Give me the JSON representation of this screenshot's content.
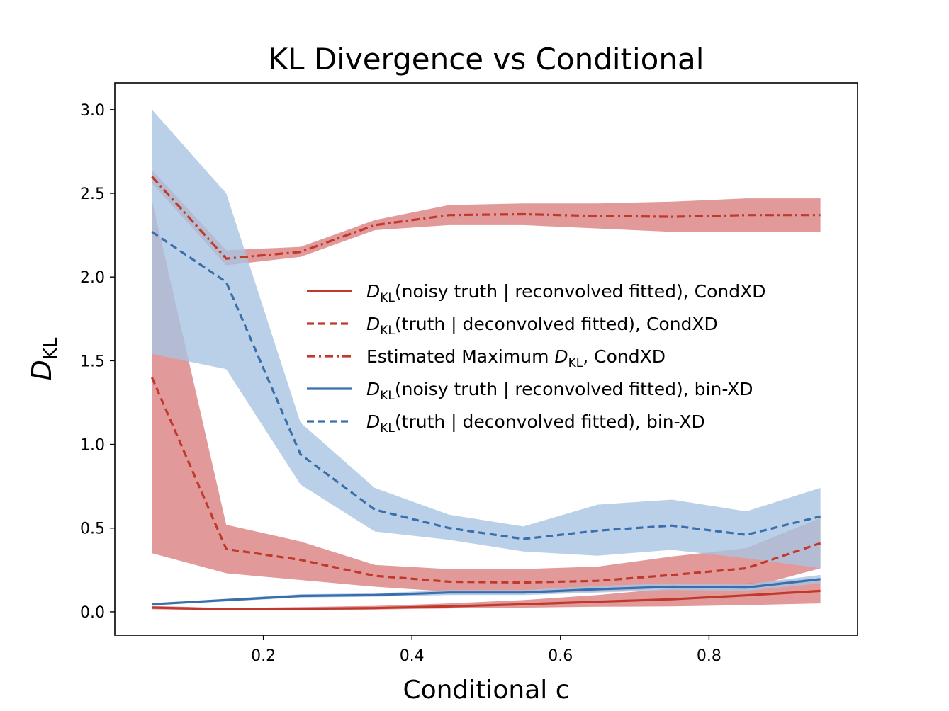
{
  "chart_data": {
    "type": "line",
    "title": "KL Divergence vs Conditional",
    "xlabel": "Conditional c",
    "ylabel_main": "D",
    "ylabel_sub": "KL",
    "xlim": [
      0.0,
      1.0
    ],
    "ylim": [
      -0.14,
      3.16
    ],
    "xticks": [
      0.2,
      0.4,
      0.6,
      0.8
    ],
    "xtick_labels": [
      "0.2",
      "0.4",
      "0.6",
      "0.8"
    ],
    "yticks": [
      0.0,
      0.5,
      1.0,
      1.5,
      2.0,
      2.5,
      3.0
    ],
    "ytick_labels": [
      "0.0",
      "0.5",
      "1.0",
      "1.5",
      "2.0",
      "2.5",
      "3.0"
    ],
    "grid": false,
    "legend_position": "center-right",
    "x": [
      0.05,
      0.15,
      0.25,
      0.35,
      0.45,
      0.55,
      0.65,
      0.75,
      0.85,
      0.95
    ],
    "series": [
      {
        "legend_pre": "D",
        "legend_sub": "KL",
        "legend_post": "(noisy truth | reconvolved fitted), CondXD",
        "color": "#c0392b",
        "band_color": "#d98080",
        "dash": "solid",
        "values": [
          0.025,
          0.015,
          0.018,
          0.022,
          0.032,
          0.045,
          0.06,
          0.075,
          0.098,
          0.125
        ],
        "lower": [
          0.015,
          0.008,
          0.01,
          0.013,
          0.02,
          0.025,
          0.03,
          0.032,
          0.04,
          0.05
        ],
        "upper": [
          0.035,
          0.022,
          0.028,
          0.035,
          0.05,
          0.07,
          0.1,
          0.14,
          0.17,
          0.2
        ]
      },
      {
        "legend_pre": "D",
        "legend_sub": "KL",
        "legend_post": "(truth | deconvolved fitted), CondXD",
        "color": "#c0392b",
        "band_color": "#d98080",
        "dash": "dashed",
        "values": [
          1.4,
          0.375,
          0.31,
          0.215,
          0.18,
          0.175,
          0.185,
          0.22,
          0.26,
          0.41
        ],
        "lower": [
          0.35,
          0.23,
          0.19,
          0.15,
          0.12,
          0.11,
          0.12,
          0.14,
          0.14,
          0.26
        ],
        "upper": [
          2.46,
          0.52,
          0.42,
          0.28,
          0.255,
          0.255,
          0.27,
          0.33,
          0.38,
          0.56
        ]
      },
      {
        "legend_pre": "Estimated Maximum D",
        "legend_sub": "KL",
        "legend_post": ", CondXD",
        "color": "#c0392b",
        "band_color": "#d98080",
        "dash": "dashdot",
        "values": [
          2.6,
          2.11,
          2.15,
          2.31,
          2.37,
          2.375,
          2.365,
          2.36,
          2.37,
          2.37
        ],
        "lower": [
          2.56,
          2.07,
          2.12,
          2.28,
          2.31,
          2.31,
          2.29,
          2.27,
          2.27,
          2.27
        ],
        "upper": [
          2.64,
          2.16,
          2.18,
          2.34,
          2.43,
          2.44,
          2.44,
          2.45,
          2.47,
          2.47
        ]
      },
      {
        "legend_pre": "D",
        "legend_sub": "KL",
        "legend_post": "(noisy truth | reconvolved fitted), bin-XD",
        "color": "#3a6fae",
        "band_color": "#a9c4e2",
        "dash": "solid",
        "values": [
          0.045,
          0.07,
          0.095,
          0.1,
          0.115,
          0.115,
          0.135,
          0.15,
          0.145,
          0.195
        ],
        "lower": [
          0.04,
          0.062,
          0.085,
          0.09,
          0.1,
          0.1,
          0.115,
          0.13,
          0.125,
          0.17
        ],
        "upper": [
          0.05,
          0.078,
          0.105,
          0.11,
          0.13,
          0.13,
          0.155,
          0.17,
          0.165,
          0.22
        ]
      },
      {
        "legend_pre": "D",
        "legend_sub": "KL",
        "legend_post": "(truth | deconvolved fitted), bin-XD",
        "color": "#3a6fae",
        "band_color": "#a9c4e2",
        "dash": "dashed",
        "values": [
          2.27,
          1.97,
          0.94,
          0.61,
          0.5,
          0.435,
          0.485,
          0.515,
          0.46,
          0.57
        ],
        "lower": [
          1.54,
          1.45,
          0.76,
          0.48,
          0.43,
          0.36,
          0.335,
          0.37,
          0.32,
          0.26
        ],
        "upper": [
          3.0,
          2.5,
          1.13,
          0.74,
          0.58,
          0.51,
          0.64,
          0.67,
          0.6,
          0.74
        ]
      }
    ]
  }
}
